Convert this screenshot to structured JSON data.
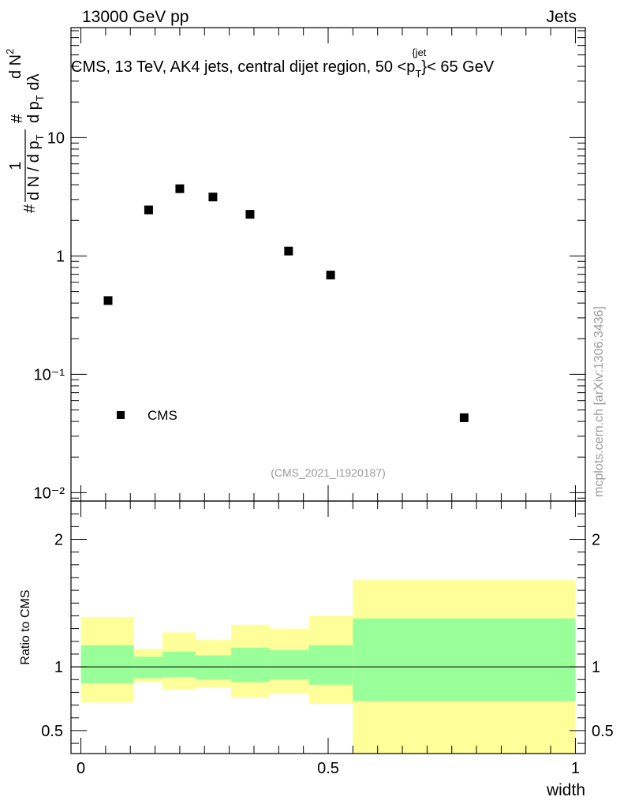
{
  "chart_data": {
    "header_left": "13000 GeV pp",
    "header_right": "Jets",
    "title": "CMS, 13 TeV, AK4 jets, central dijet region, 50 <p",
    "title_sub": "T",
    "title_sup": "{jet",
    "title_end": "}< 65 GeV",
    "side_label": "mcplots.cern.ch [arXiv:1306.3436]",
    "analysis_id": "(CMS_2021_I1920187)",
    "ylabel_num": "1",
    "ylabel_den": "d N / d p",
    "ylabel_den_sub": "T",
    "ylabel_hash": "#",
    "ylabel_d2": "d N",
    "ylabel_d2_sup": "2",
    "ylabel_d2_den": "d p",
    "ylabel_d2_den_sub": "T",
    "ylabel_lambda": " dλ",
    "xlabel": "width",
    "ratio_ylabel": "Ratio to CMS",
    "legend_label": "CMS",
    "main": {
      "type": "scatter",
      "yscale": "log",
      "xlim": [
        -0.02,
        1.02
      ],
      "ylim": [
        0.0085,
        85
      ],
      "ytick_labels": [
        "10⁻²",
        "10⁻¹",
        "1",
        "10"
      ],
      "ytick_values": [
        0.01,
        0.1,
        1,
        10
      ],
      "series": [
        {
          "name": "CMS",
          "x": [
            0.055,
            0.137,
            0.2,
            0.267,
            0.342,
            0.42,
            0.505,
            0.775
          ],
          "y": [
            0.42,
            2.45,
            3.7,
            3.15,
            2.25,
            1.1,
            0.69,
            0.043
          ]
        }
      ]
    },
    "ratio": {
      "type": "area",
      "xlim": [
        -0.02,
        1.02
      ],
      "ylim": [
        0.32,
        2.3
      ],
      "yticks": [
        0.5,
        1,
        2
      ],
      "ytick_labels": [
        "0.5",
        "1",
        "2"
      ],
      "xticks": [
        0,
        0.5,
        1
      ],
      "xtick_labels": [
        "0",
        "0.5",
        "1"
      ],
      "bin_edges": [
        0,
        0.107,
        0.165,
        0.232,
        0.304,
        0.382,
        0.461,
        0.55,
        1.0
      ],
      "green_low": [
        0.87,
        0.91,
        0.92,
        0.9,
        0.88,
        0.9,
        0.86,
        0.73
      ],
      "green_high": [
        1.17,
        1.08,
        1.12,
        1.09,
        1.15,
        1.13,
        1.17,
        1.38
      ],
      "yellow_low": [
        0.72,
        0.88,
        0.82,
        0.84,
        0.76,
        0.79,
        0.71,
        0.32
      ],
      "yellow_high": [
        1.39,
        1.14,
        1.27,
        1.21,
        1.33,
        1.3,
        1.4,
        1.68
      ],
      "colors": {
        "green": "#99ff99",
        "yellow": "#ffff99",
        "line": "#000000"
      }
    }
  }
}
